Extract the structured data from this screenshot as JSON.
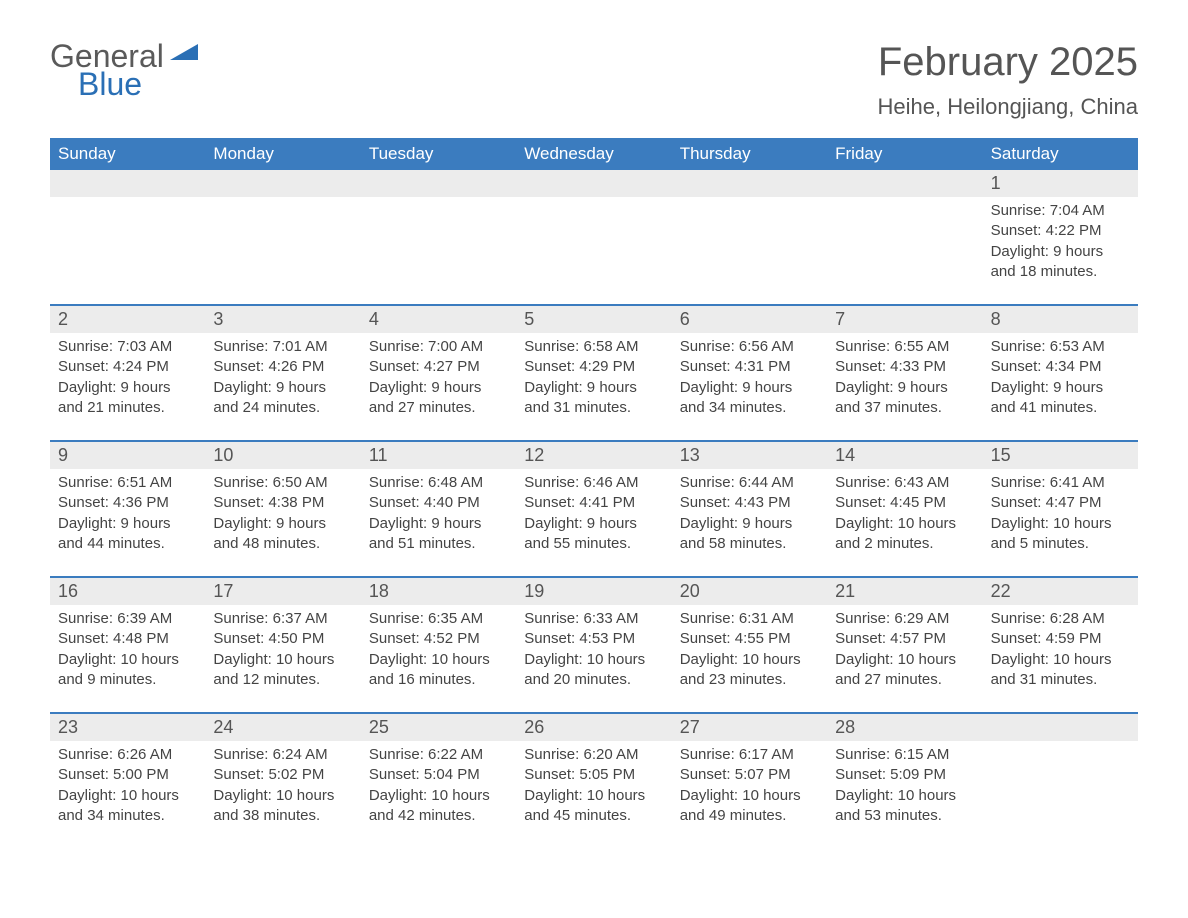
{
  "logo": {
    "text1": "General",
    "text2": "Blue",
    "color_general": "#5a5a5a",
    "color_blue": "#2a6fb5",
    "triangle_color": "#2a6fb5"
  },
  "title": "February 2025",
  "location": "Heihe, Heilongjiang, China",
  "colors": {
    "header_bg": "#3b7cbf",
    "header_text": "#ffffff",
    "daynum_row_bg": "#ececec",
    "separator": "#3b7cbf",
    "body_text": "#444444",
    "title_text": "#555555",
    "background": "#ffffff"
  },
  "typography": {
    "title_fontsize": 40,
    "location_fontsize": 22,
    "dayheader_fontsize": 17,
    "daynum_fontsize": 18,
    "cell_fontsize": 15
  },
  "day_names": [
    "Sunday",
    "Monday",
    "Tuesday",
    "Wednesday",
    "Thursday",
    "Friday",
    "Saturday"
  ],
  "weeks": [
    [
      {
        "num": "",
        "sunrise": "",
        "sunset": "",
        "daylight1": "",
        "daylight2": ""
      },
      {
        "num": "",
        "sunrise": "",
        "sunset": "",
        "daylight1": "",
        "daylight2": ""
      },
      {
        "num": "",
        "sunrise": "",
        "sunset": "",
        "daylight1": "",
        "daylight2": ""
      },
      {
        "num": "",
        "sunrise": "",
        "sunset": "",
        "daylight1": "",
        "daylight2": ""
      },
      {
        "num": "",
        "sunrise": "",
        "sunset": "",
        "daylight1": "",
        "daylight2": ""
      },
      {
        "num": "",
        "sunrise": "",
        "sunset": "",
        "daylight1": "",
        "daylight2": ""
      },
      {
        "num": "1",
        "sunrise": "Sunrise: 7:04 AM",
        "sunset": "Sunset: 4:22 PM",
        "daylight1": "Daylight: 9 hours",
        "daylight2": "and 18 minutes."
      }
    ],
    [
      {
        "num": "2",
        "sunrise": "Sunrise: 7:03 AM",
        "sunset": "Sunset: 4:24 PM",
        "daylight1": "Daylight: 9 hours",
        "daylight2": "and 21 minutes."
      },
      {
        "num": "3",
        "sunrise": "Sunrise: 7:01 AM",
        "sunset": "Sunset: 4:26 PM",
        "daylight1": "Daylight: 9 hours",
        "daylight2": "and 24 minutes."
      },
      {
        "num": "4",
        "sunrise": "Sunrise: 7:00 AM",
        "sunset": "Sunset: 4:27 PM",
        "daylight1": "Daylight: 9 hours",
        "daylight2": "and 27 minutes."
      },
      {
        "num": "5",
        "sunrise": "Sunrise: 6:58 AM",
        "sunset": "Sunset: 4:29 PM",
        "daylight1": "Daylight: 9 hours",
        "daylight2": "and 31 minutes."
      },
      {
        "num": "6",
        "sunrise": "Sunrise: 6:56 AM",
        "sunset": "Sunset: 4:31 PM",
        "daylight1": "Daylight: 9 hours",
        "daylight2": "and 34 minutes."
      },
      {
        "num": "7",
        "sunrise": "Sunrise: 6:55 AM",
        "sunset": "Sunset: 4:33 PM",
        "daylight1": "Daylight: 9 hours",
        "daylight2": "and 37 minutes."
      },
      {
        "num": "8",
        "sunrise": "Sunrise: 6:53 AM",
        "sunset": "Sunset: 4:34 PM",
        "daylight1": "Daylight: 9 hours",
        "daylight2": "and 41 minutes."
      }
    ],
    [
      {
        "num": "9",
        "sunrise": "Sunrise: 6:51 AM",
        "sunset": "Sunset: 4:36 PM",
        "daylight1": "Daylight: 9 hours",
        "daylight2": "and 44 minutes."
      },
      {
        "num": "10",
        "sunrise": "Sunrise: 6:50 AM",
        "sunset": "Sunset: 4:38 PM",
        "daylight1": "Daylight: 9 hours",
        "daylight2": "and 48 minutes."
      },
      {
        "num": "11",
        "sunrise": "Sunrise: 6:48 AM",
        "sunset": "Sunset: 4:40 PM",
        "daylight1": "Daylight: 9 hours",
        "daylight2": "and 51 minutes."
      },
      {
        "num": "12",
        "sunrise": "Sunrise: 6:46 AM",
        "sunset": "Sunset: 4:41 PM",
        "daylight1": "Daylight: 9 hours",
        "daylight2": "and 55 minutes."
      },
      {
        "num": "13",
        "sunrise": "Sunrise: 6:44 AM",
        "sunset": "Sunset: 4:43 PM",
        "daylight1": "Daylight: 9 hours",
        "daylight2": "and 58 minutes."
      },
      {
        "num": "14",
        "sunrise": "Sunrise: 6:43 AM",
        "sunset": "Sunset: 4:45 PM",
        "daylight1": "Daylight: 10 hours",
        "daylight2": "and 2 minutes."
      },
      {
        "num": "15",
        "sunrise": "Sunrise: 6:41 AM",
        "sunset": "Sunset: 4:47 PM",
        "daylight1": "Daylight: 10 hours",
        "daylight2": "and 5 minutes."
      }
    ],
    [
      {
        "num": "16",
        "sunrise": "Sunrise: 6:39 AM",
        "sunset": "Sunset: 4:48 PM",
        "daylight1": "Daylight: 10 hours",
        "daylight2": "and 9 minutes."
      },
      {
        "num": "17",
        "sunrise": "Sunrise: 6:37 AM",
        "sunset": "Sunset: 4:50 PM",
        "daylight1": "Daylight: 10 hours",
        "daylight2": "and 12 minutes."
      },
      {
        "num": "18",
        "sunrise": "Sunrise: 6:35 AM",
        "sunset": "Sunset: 4:52 PM",
        "daylight1": "Daylight: 10 hours",
        "daylight2": "and 16 minutes."
      },
      {
        "num": "19",
        "sunrise": "Sunrise: 6:33 AM",
        "sunset": "Sunset: 4:53 PM",
        "daylight1": "Daylight: 10 hours",
        "daylight2": "and 20 minutes."
      },
      {
        "num": "20",
        "sunrise": "Sunrise: 6:31 AM",
        "sunset": "Sunset: 4:55 PM",
        "daylight1": "Daylight: 10 hours",
        "daylight2": "and 23 minutes."
      },
      {
        "num": "21",
        "sunrise": "Sunrise: 6:29 AM",
        "sunset": "Sunset: 4:57 PM",
        "daylight1": "Daylight: 10 hours",
        "daylight2": "and 27 minutes."
      },
      {
        "num": "22",
        "sunrise": "Sunrise: 6:28 AM",
        "sunset": "Sunset: 4:59 PM",
        "daylight1": "Daylight: 10 hours",
        "daylight2": "and 31 minutes."
      }
    ],
    [
      {
        "num": "23",
        "sunrise": "Sunrise: 6:26 AM",
        "sunset": "Sunset: 5:00 PM",
        "daylight1": "Daylight: 10 hours",
        "daylight2": "and 34 minutes."
      },
      {
        "num": "24",
        "sunrise": "Sunrise: 6:24 AM",
        "sunset": "Sunset: 5:02 PM",
        "daylight1": "Daylight: 10 hours",
        "daylight2": "and 38 minutes."
      },
      {
        "num": "25",
        "sunrise": "Sunrise: 6:22 AM",
        "sunset": "Sunset: 5:04 PM",
        "daylight1": "Daylight: 10 hours",
        "daylight2": "and 42 minutes."
      },
      {
        "num": "26",
        "sunrise": "Sunrise: 6:20 AM",
        "sunset": "Sunset: 5:05 PM",
        "daylight1": "Daylight: 10 hours",
        "daylight2": "and 45 minutes."
      },
      {
        "num": "27",
        "sunrise": "Sunrise: 6:17 AM",
        "sunset": "Sunset: 5:07 PM",
        "daylight1": "Daylight: 10 hours",
        "daylight2": "and 49 minutes."
      },
      {
        "num": "28",
        "sunrise": "Sunrise: 6:15 AM",
        "sunset": "Sunset: 5:09 PM",
        "daylight1": "Daylight: 10 hours",
        "daylight2": "and 53 minutes."
      },
      {
        "num": "",
        "sunrise": "",
        "sunset": "",
        "daylight1": "",
        "daylight2": ""
      }
    ]
  ]
}
